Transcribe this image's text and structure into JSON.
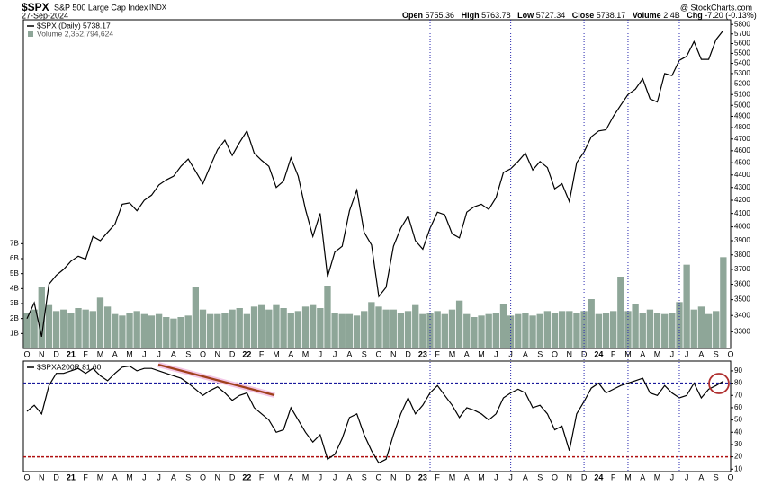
{
  "header": {
    "symbol": "$SPX",
    "name": "S&P 500 Large Cap Index",
    "exchange": "INDX",
    "date": "27-Sep-2024",
    "source": "@ StockCharts.com",
    "quote": [
      {
        "label": "Open",
        "value": "5755.36"
      },
      {
        "label": "High",
        "value": "5763.78"
      },
      {
        "label": "Low",
        "value": "5727.34"
      },
      {
        "label": "Close",
        "value": "5738.17"
      },
      {
        "label": "Volume",
        "value": "2.4B"
      },
      {
        "label": "Chg",
        "value": "-7.20 (-0.13%)"
      }
    ]
  },
  "chart_data": [
    {
      "type": "line",
      "log": true,
      "categories": [
        "O",
        null,
        "N",
        null,
        "D",
        null,
        "21",
        null,
        "F",
        null,
        "M",
        null,
        "A",
        null,
        "M",
        null,
        "J",
        null,
        "J",
        null,
        "A",
        null,
        "S",
        null,
        "O",
        null,
        "N",
        null,
        "D",
        null,
        "22",
        null,
        "F",
        null,
        "M",
        null,
        "A",
        null,
        "M",
        null,
        "J",
        null,
        "J",
        null,
        "A",
        null,
        "S",
        null,
        "O",
        null,
        "N",
        null,
        "D",
        null,
        "23",
        null,
        "F",
        null,
        "M",
        null,
        "A",
        null,
        "M",
        null,
        "J",
        null,
        "J",
        null,
        "A",
        null,
        "S",
        null,
        "O",
        null,
        "N",
        null,
        "D",
        null,
        "24",
        null,
        "F",
        null,
        "M",
        null,
        "A",
        null,
        "M",
        null,
        "J",
        null,
        "J",
        null,
        "A",
        null,
        "S",
        null,
        "O"
      ],
      "series": [
        {
          "name": "$SPX (Daily) 5738.17",
          "color": "#000000",
          "values": [
            3380,
            3480,
            3270,
            3600,
            3660,
            3700,
            3756,
            3790,
            3770,
            3930,
            3900,
            3960,
            4020,
            4170,
            4180,
            4120,
            4200,
            4240,
            4320,
            4360,
            4390,
            4470,
            4530,
            4430,
            4330,
            4470,
            4610,
            4690,
            4560,
            4670,
            4770,
            4580,
            4520,
            4470,
            4300,
            4350,
            4540,
            4390,
            4130,
            3930,
            4100,
            3650,
            3820,
            3860,
            4120,
            4280,
            3960,
            3870,
            3520,
            3580,
            3860,
            3990,
            4080,
            3900,
            3840,
            3990,
            4110,
            4090,
            3950,
            3920,
            4110,
            4150,
            4170,
            4130,
            4220,
            4420,
            4450,
            4510,
            4580,
            4440,
            4510,
            4460,
            4290,
            4330,
            4190,
            4500,
            4590,
            4720,
            4770,
            4780,
            4900,
            5000,
            5100,
            5150,
            5250,
            5060,
            5030,
            5300,
            5280,
            5430,
            5470,
            5620,
            5440,
            5440,
            5640,
            5738,
            null
          ]
        },
        {
          "name": "Volume 2,352,794,624",
          "color": "#8ea698",
          "type": "bar",
          "axis": "y2",
          "values": [
            2.4,
            2.6,
            4.1,
            2.9,
            2.5,
            2.6,
            2.4,
            2.7,
            2.6,
            2.5,
            3.4,
            2.8,
            2.3,
            2.2,
            2.4,
            2.5,
            2.3,
            2.2,
            2.3,
            2.1,
            2.0,
            2.1,
            2.2,
            4.1,
            2.6,
            2.3,
            2.3,
            2.4,
            2.6,
            2.7,
            2.3,
            2.8,
            2.9,
            2.6,
            2.9,
            2.7,
            2.4,
            2.5,
            2.8,
            2.9,
            2.7,
            4.2,
            2.4,
            2.3,
            2.3,
            2.2,
            2.5,
            3.1,
            2.8,
            2.6,
            2.6,
            2.4,
            2.5,
            2.9,
            2.3,
            2.4,
            2.5,
            2.3,
            2.6,
            3.2,
            2.3,
            2.1,
            2.2,
            2.3,
            2.4,
            3.0,
            2.2,
            2.3,
            2.4,
            2.2,
            2.3,
            2.5,
            2.4,
            2.5,
            2.5,
            2.4,
            2.5,
            3.3,
            2.3,
            2.4,
            2.5,
            4.8,
            2.5,
            3.0,
            2.4,
            2.6,
            2.4,
            2.3,
            2.4,
            3.1,
            5.6,
            2.6,
            2.8,
            2.3,
            2.5,
            6.1,
            null
          ]
        }
      ],
      "ylim": [
        3200,
        5850
      ],
      "yticks": [
        3300,
        3400,
        3500,
        3600,
        3700,
        3800,
        3900,
        4000,
        4100,
        4200,
        4300,
        4400,
        4500,
        4600,
        4700,
        4800,
        4900,
        5000,
        5100,
        5200,
        5300,
        5400,
        5500,
        5600,
        5700,
        5800
      ],
      "y2lim": [
        0,
        7.2
      ],
      "y2ticks": [
        {
          "value": 1,
          "label": "1B"
        },
        {
          "value": 2,
          "label": "2B"
        },
        {
          "value": 3,
          "label": "3B"
        },
        {
          "value": 4,
          "label": "4B"
        },
        {
          "value": 5,
          "label": "5B"
        },
        {
          "value": 6,
          "label": "6B"
        },
        {
          "value": 7,
          "label": "7B"
        }
      ],
      "vlines": [
        55,
        66,
        76,
        82,
        89
      ]
    },
    {
      "type": "line",
      "categories": [
        "O",
        null,
        "N",
        null,
        "D",
        null,
        "21",
        null,
        "F",
        null,
        "M",
        null,
        "A",
        null,
        "M",
        null,
        "J",
        null,
        "J",
        null,
        "A",
        null,
        "S",
        null,
        "O",
        null,
        "N",
        null,
        "D",
        null,
        "22",
        null,
        "F",
        null,
        "M",
        null,
        "A",
        null,
        "M",
        null,
        "J",
        null,
        "J",
        null,
        "A",
        null,
        "S",
        null,
        "O",
        null,
        "N",
        null,
        "D",
        null,
        "23",
        null,
        "F",
        null,
        "M",
        null,
        "A",
        null,
        "M",
        null,
        "J",
        null,
        "J",
        null,
        "A",
        null,
        "S",
        null,
        "O",
        null,
        "N",
        null,
        "D",
        null,
        "24",
        null,
        "F",
        null,
        "M",
        null,
        "A",
        null,
        "M",
        null,
        "J",
        null,
        "J",
        null,
        "A",
        null,
        "S",
        null,
        "O"
      ],
      "series": [
        {
          "name": "$SPXA200R 81.60",
          "color": "#000000",
          "values": [
            57,
            62,
            55,
            78,
            88,
            88,
            90,
            92,
            88,
            92,
            86,
            82,
            88,
            93,
            94,
            90,
            92,
            92,
            90,
            88,
            86,
            84,
            80,
            75,
            70,
            74,
            77,
            72,
            66,
            70,
            72,
            60,
            55,
            50,
            40,
            42,
            60,
            50,
            40,
            32,
            38,
            18,
            22,
            35,
            52,
            55,
            38,
            25,
            15,
            18,
            38,
            55,
            68,
            55,
            62,
            72,
            78,
            70,
            62,
            52,
            60,
            58,
            55,
            50,
            55,
            68,
            72,
            75,
            72,
            60,
            62,
            55,
            42,
            45,
            25,
            55,
            65,
            76,
            80,
            72,
            75,
            78,
            80,
            82,
            84,
            72,
            70,
            78,
            72,
            68,
            70,
            80,
            68,
            75,
            78,
            81.6,
            null
          ]
        }
      ],
      "ylim": [
        8,
        98
      ],
      "yticks": [
        10,
        20,
        30,
        40,
        50,
        60,
        70,
        80,
        90
      ],
      "reference_lines": [
        {
          "value": 80,
          "color": "#1a1a9c"
        },
        {
          "value": 20,
          "color": "#b01010"
        }
      ]
    }
  ]
}
